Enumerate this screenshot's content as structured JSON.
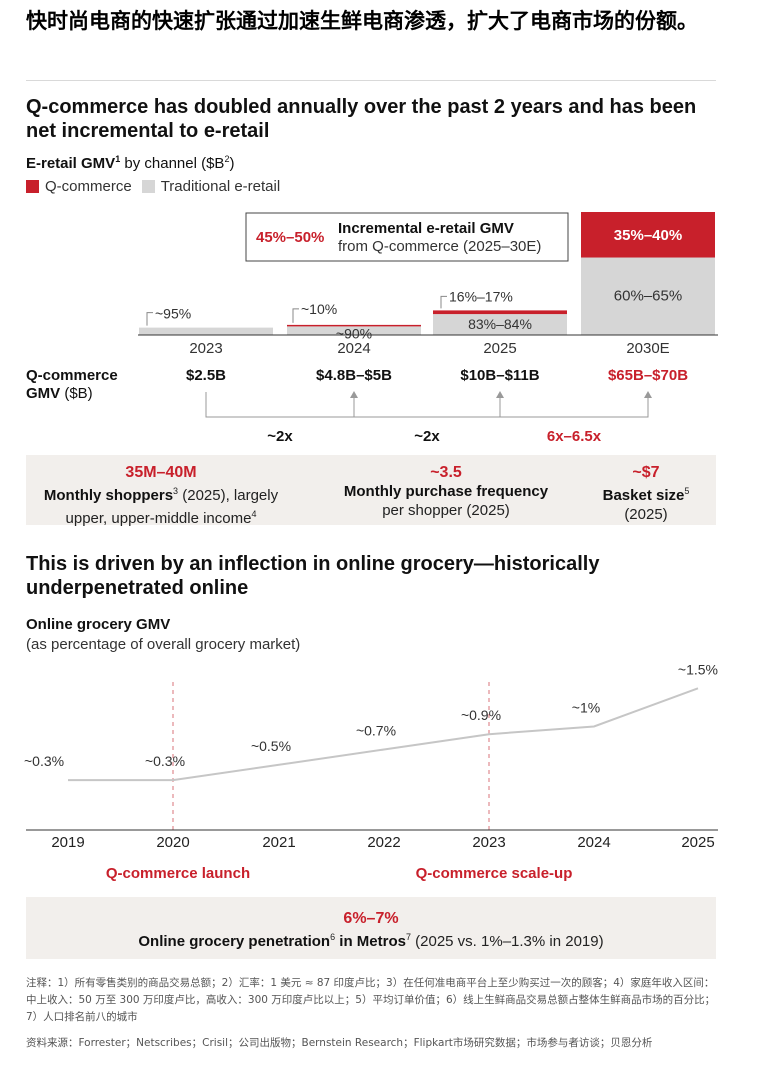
{
  "headline": "快时尚电商的快速扩张通过加速生鲜电商渗透，扩大了电商市场的份额。",
  "section1": {
    "title": "Q-commerce has doubled annually over the past 2 years and has been net incremental to e-retail",
    "subtitle_main": "E-retail GMV",
    "subtitle_sup1": "1",
    "subtitle_mid": " by channel ($B",
    "subtitle_sup2": "2",
    "subtitle_end": ")",
    "legend": [
      "Q-commerce",
      "Traditional e-retail"
    ],
    "callout": {
      "value": "45%–50%",
      "line1": "Incremental e-retail GMV",
      "line2": "from Q-commerce (2025–30E)"
    },
    "row_label_1": "Q-commerce",
    "row_label_2": "GMV ($B)",
    "growth_labels": [
      "~2x",
      "~2x",
      "6x–6.5x"
    ]
  },
  "chart_data": [
    {
      "type": "bar",
      "title": "E-retail GMV by channel ($B)",
      "categories": [
        "2023",
        "2024",
        "2025",
        "2030E"
      ],
      "series": [
        {
          "name": "Q-commerce",
          "share_labels": [
            "",
            "~10%",
            "16%–17%",
            "35%–40%"
          ],
          "relative_height": [
            0,
            0.004,
            0.03,
            0.37
          ]
        },
        {
          "name": "Traditional e-retail",
          "share_labels": [
            "~95%",
            "~90%",
            "83%–84%",
            "60%–65%"
          ],
          "relative_height": [
            0.06,
            0.07,
            0.17,
            0.63
          ]
        }
      ],
      "gmv_labels": [
        "$2.5B",
        "$4.8B–$5B",
        "$10B–$11B",
        "$65B–$70B"
      ]
    },
    {
      "type": "line",
      "title": "Online grocery GMV",
      "subtitle": "(as percentage of overall grocery market)",
      "x": [
        "2019",
        "2020",
        "2021",
        "2022",
        "2023",
        "2024",
        "2025"
      ],
      "y": [
        0.3,
        0.3,
        0.5,
        0.7,
        0.9,
        1.0,
        1.5
      ],
      "labels": [
        "~0.3%",
        "~0.3%",
        "~0.5%",
        "~0.7%",
        "~0.9%",
        "~1%",
        "~1.5%"
      ],
      "ylim": [
        0,
        1.7
      ],
      "events": [
        {
          "x": "2020",
          "label": "Q-commerce launch"
        },
        {
          "x": "2023",
          "label": "Q-commerce scale-up"
        }
      ]
    }
  ],
  "stats1": [
    {
      "big": "35M–40M",
      "bold": "Monthly shoppers",
      "sup": "3",
      "rest": " (2025), largely",
      "line2": "upper, upper-middle income",
      "sup2": "4"
    },
    {
      "big": "~3.5",
      "bold": "Monthly purchase frequency",
      "sup": "",
      "rest": "",
      "line2": "per shopper (2025)",
      "sup2": ""
    },
    {
      "big": "~$7",
      "bold": "Basket size",
      "sup": "5",
      "rest": "",
      "line2": "(2025)",
      "sup2": ""
    }
  ],
  "section2": {
    "title": "This is driven by an inflection in online grocery—historically underpenetrated online",
    "chart_title": "Online grocery GMV",
    "chart_subtitle": "(as percentage of overall grocery market)"
  },
  "stats2": {
    "big": "6%–7%",
    "bold": "Online grocery penetration",
    "sup": "6",
    "bold2": " in Metros",
    "sup2": "7",
    "rest": " (2025 vs. 1%–1.3% in 2019)"
  },
  "notes": "注释：1）所有零售类别的商品交易总额；2）汇率：1 美元 ≈ 87 印度卢比；3）在任何准电商平台上至少购买过一次的顾客；4）家庭年收入区间：中上收入：50 万至 300 万印度卢比，高收入：300 万印度卢比以上；5）平均订单价值；6）线上生鲜商品交易总额占整体生鲜商品市场的百分比；7）人口排名前八的城市",
  "sources": "资料来源：Forrester；Netscribes；Crisil；公司出版物；Bernstein Research；Flipkart市场研究数据；市场参与者访谈；贝恩分析",
  "colors": {
    "qcommerce": "#c8202b",
    "traditional": "#d6d6d6",
    "panel": "#f2efec",
    "line": "#c6c6c6"
  }
}
